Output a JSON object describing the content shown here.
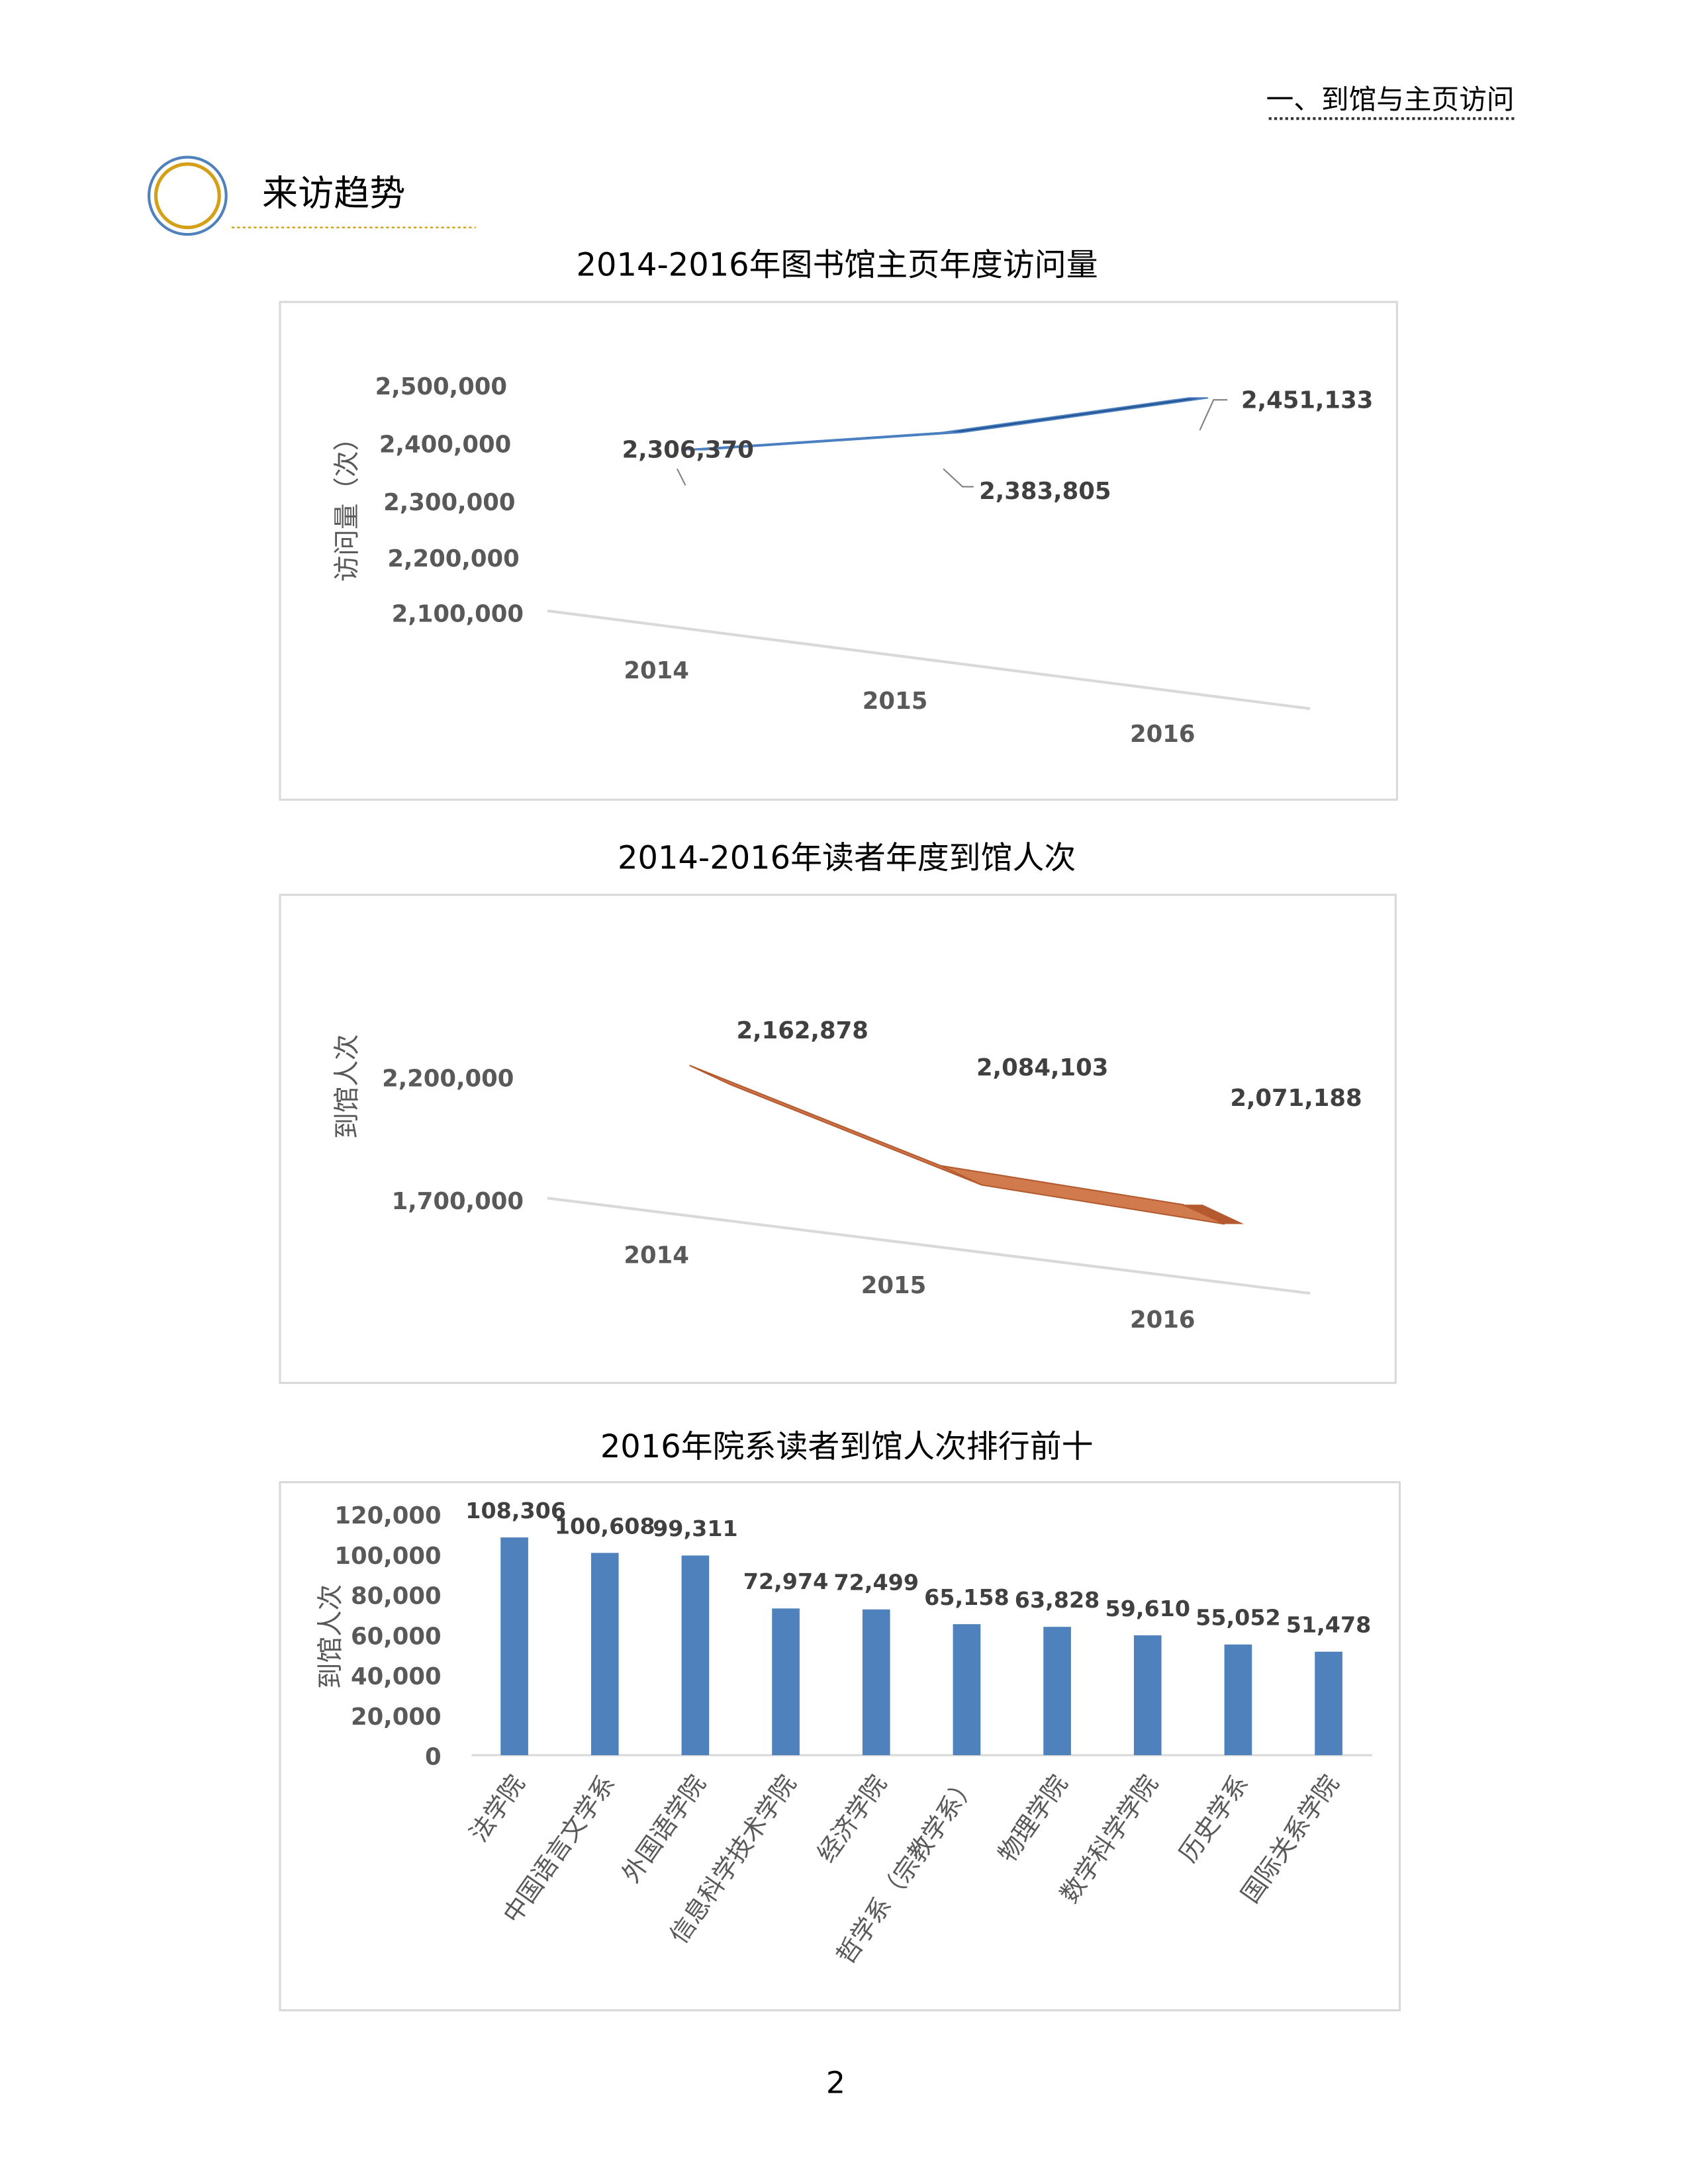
{
  "header": {
    "section": "一、到馆与主页访问"
  },
  "section_title": "来访趋势",
  "page_number": "2",
  "colors": {
    "blue": "#4f81bd",
    "ribbon_blue": "#1f4e8c",
    "orange": "#d07040",
    "gold": "#d4a017"
  },
  "chart_data": [
    {
      "type": "line",
      "style": "3d-ribbon",
      "title": "2014-2016年图书馆主页年度访问量",
      "ylabel": "访问量（次）",
      "yticks": [
        "2,500,000",
        "2,400,000",
        "2,300,000",
        "2,200,000",
        "2,100,000"
      ],
      "ylim": [
        2100000,
        2500000
      ],
      "categories": [
        "2014",
        "2015",
        "2016"
      ],
      "values": [
        2306370,
        2383805,
        2451133
      ],
      "data_labels": [
        "2,306,370",
        "2,383,805",
        "2,451,133"
      ]
    },
    {
      "type": "line",
      "style": "3d-ribbon",
      "title": "2014-2016年读者年度到馆人次",
      "ylabel": "到馆人次",
      "yticks": [
        "2,200,000",
        "1,700,000"
      ],
      "ylim": [
        1700000,
        2200000
      ],
      "categories": [
        "2014",
        "2015",
        "2016"
      ],
      "values": [
        2162878,
        2084103,
        2071188
      ],
      "data_labels": [
        "2,162,878",
        "2,084,103",
        "2,071,188"
      ]
    },
    {
      "type": "bar",
      "title": "2016年院系读者到馆人次排行前十",
      "ylabel": "到馆人次",
      "yticks": [
        "120,000",
        "100,000",
        "80,000",
        "60,000",
        "40,000",
        "20,000",
        "0"
      ],
      "ylim": [
        0,
        120000
      ],
      "categories": [
        "法学院",
        "中国语言文学系",
        "外国语学院",
        "信息科学技术学院",
        "经济学院",
        "哲学系（宗教学系）",
        "物理学院",
        "数学科学学院",
        "历史学系",
        "国际关系学院"
      ],
      "values": [
        108306,
        100608,
        99311,
        72974,
        72499,
        65158,
        63828,
        59610,
        55052,
        51478
      ],
      "data_labels": [
        "108,306",
        "100,608",
        "99,311",
        "72,974",
        "72,499",
        "65,158",
        "63,828",
        "59,610",
        "55,052",
        "51,478"
      ]
    }
  ]
}
